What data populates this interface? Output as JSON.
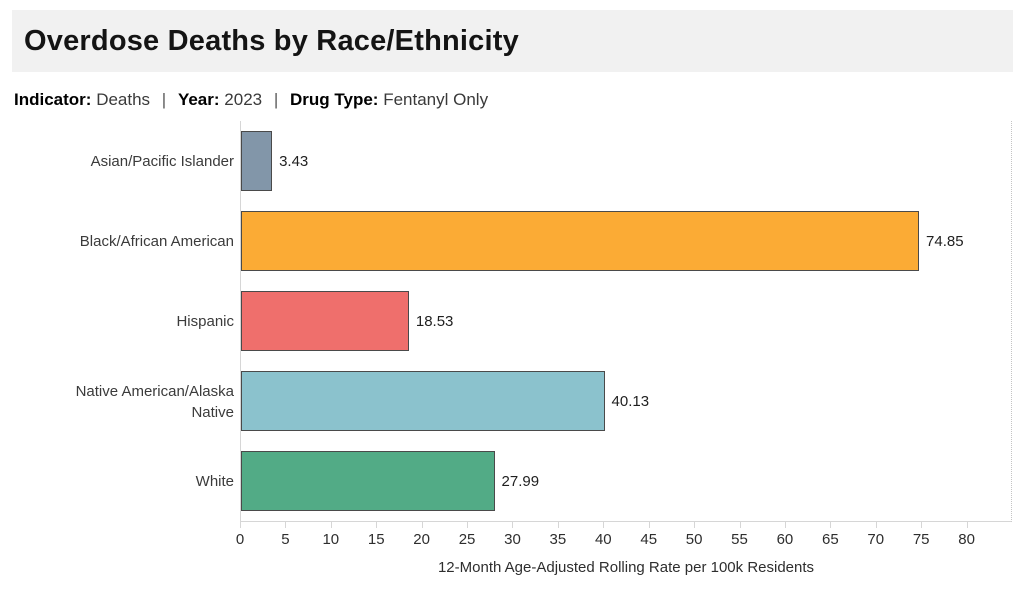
{
  "header": {
    "title": "Overdose Deaths by Race/Ethnicity"
  },
  "filters": {
    "indicator_label": "Indicator:",
    "indicator_value": "Deaths",
    "separator": "|",
    "year_label": "Year:",
    "year_value": "2023",
    "drug_type_label": "Drug Type:",
    "drug_type_value": "Fentanyl Only"
  },
  "chart_data": {
    "type": "bar",
    "orientation": "horizontal",
    "title": "Overdose Deaths by Race/Ethnicity",
    "subtitle": "Indicator: Deaths | Year: 2023 | Drug Type: Fentanyl Only",
    "categories": [
      "Asian/Pacific Islander",
      "Black/African American",
      "Hispanic",
      "Native American/Alaska Native",
      "White"
    ],
    "values": [
      3.43,
      74.85,
      18.53,
      40.13,
      27.99
    ],
    "value_labels": [
      "3.43",
      "74.85",
      "18.53",
      "40.13",
      "27.99"
    ],
    "bar_colors": [
      "#8296A9",
      "#FBAB35",
      "#EF6F6C",
      "#8BC2CD",
      "#52AB86"
    ],
    "bar_border_color": "#4A4A4A",
    "xlabel": "12-Month Age-Adjusted Rolling Rate per 100k Residents",
    "ylabel": "",
    "x_ticks": [
      0,
      5,
      10,
      15,
      20,
      25,
      30,
      35,
      40,
      45,
      50,
      55,
      60,
      65,
      70,
      75,
      80
    ],
    "xlim": [
      0,
      85
    ],
    "grid": false,
    "legend": false
  }
}
